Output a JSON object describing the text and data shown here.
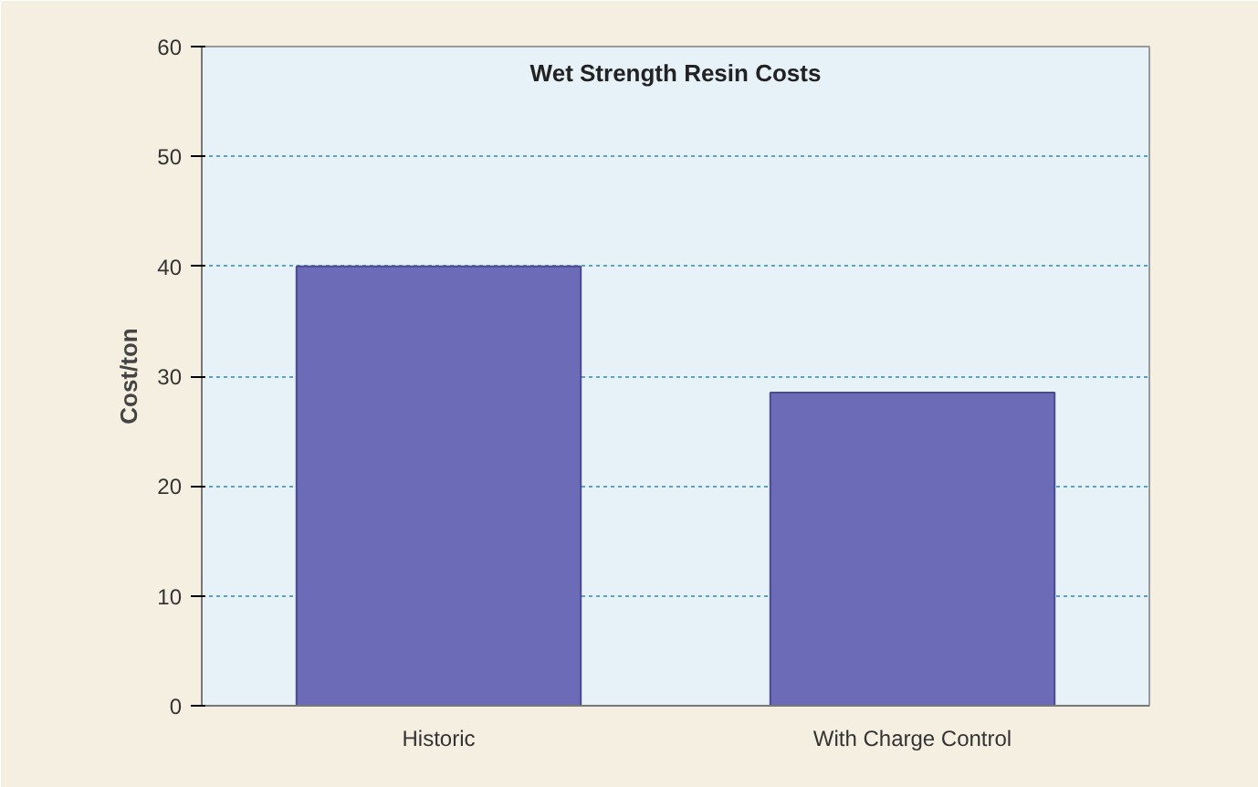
{
  "chart_data": {
    "type": "bar",
    "title": "Wet Strength Resin Costs",
    "ylabel": "Cost/ton",
    "categories": [
      "Historic",
      "With Charge Control"
    ],
    "values": [
      40,
      28.5
    ],
    "color": "#6b6bb8",
    "ylim": [
      0,
      60
    ],
    "yticks": [
      0,
      10,
      20,
      30,
      40,
      50,
      60
    ],
    "grid": "y"
  }
}
